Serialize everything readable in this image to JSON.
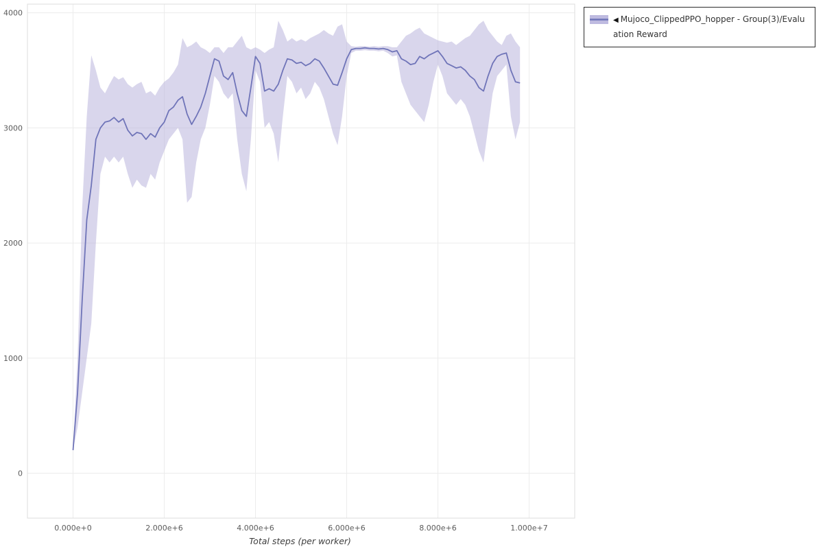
{
  "page": {
    "background": "#ffffff"
  },
  "colors": {
    "line": "#6f74b8",
    "band": "#b3aeda",
    "band_opacity": 0.5,
    "grid": "#ececec",
    "axis_text": "#5a5a5a",
    "plot_border": "#dcdcdc",
    "legend_border": "#2b2b2b",
    "legend_text": "#333333"
  },
  "legend": {
    "collapse_icon": "◀",
    "label": "Mujoco_ClippedPPO_hopper - Group(3)/Evaluation Reward"
  },
  "chart_data": {
    "type": "line",
    "title": "",
    "xlabel": "Total steps (per worker)",
    "ylabel": "",
    "grid": true,
    "legend_position": "top-right-outside",
    "x_start": 0,
    "x_step": 100000,
    "xlim": [
      -1000000,
      11000000
    ],
    "ylim": [
      -390,
      4075
    ],
    "x_ticks": {
      "values": [
        0,
        2000000,
        4000000,
        6000000,
        8000000,
        10000000
      ],
      "labels": [
        "0.000e+0",
        "2.000e+6",
        "4.000e+6",
        "6.000e+6",
        "8.000e+6",
        "1.000e+7"
      ]
    },
    "y_ticks": {
      "values": [
        0,
        1000,
        2000,
        3000,
        4000
      ],
      "labels": [
        "0",
        "1000",
        "2000",
        "3000",
        "4000"
      ]
    },
    "series": [
      {
        "name": "Mujoco_ClippedPPO_hopper - Group(3)/Evaluation Reward",
        "mean": [
          200,
          700,
          1500,
          2200,
          2500,
          2900,
          3000,
          3050,
          3060,
          3090,
          3050,
          3080,
          2980,
          2930,
          2960,
          2950,
          2900,
          2950,
          2920,
          3000,
          3050,
          3150,
          3180,
          3240,
          3270,
          3120,
          3030,
          3100,
          3180,
          3300,
          3450,
          3600,
          3580,
          3450,
          3420,
          3480,
          3300,
          3150,
          3100,
          3350,
          3620,
          3560,
          3320,
          3340,
          3320,
          3380,
          3500,
          3600,
          3590,
          3560,
          3570,
          3540,
          3560,
          3600,
          3580,
          3520,
          3450,
          3380,
          3370,
          3480,
          3600,
          3680,
          3690,
          3690,
          3695,
          3690,
          3690,
          3685,
          3690,
          3680,
          3660,
          3670,
          3600,
          3580,
          3550,
          3560,
          3620,
          3600,
          3630,
          3650,
          3670,
          3620,
          3560,
          3540,
          3520,
          3530,
          3500,
          3450,
          3420,
          3350,
          3320,
          3450,
          3560,
          3620,
          3640,
          3650,
          3500,
          3400,
          3390
        ],
        "lower": [
          200,
          400,
          700,
          1000,
          1300,
          2000,
          2600,
          2750,
          2700,
          2750,
          2700,
          2750,
          2600,
          2480,
          2550,
          2500,
          2480,
          2600,
          2550,
          2700,
          2800,
          2900,
          2950,
          3000,
          2900,
          2350,
          2400,
          2700,
          2900,
          3000,
          3200,
          3450,
          3400,
          3300,
          3250,
          3300,
          2900,
          2600,
          2450,
          2900,
          3500,
          3400,
          3000,
          3050,
          2950,
          2700,
          3100,
          3450,
          3400,
          3300,
          3350,
          3250,
          3300,
          3400,
          3350,
          3250,
          3100,
          2950,
          2850,
          3100,
          3450,
          3650,
          3670,
          3670,
          3675,
          3670,
          3670,
          3665,
          3670,
          3650,
          3620,
          3630,
          3400,
          3300,
          3200,
          3150,
          3100,
          3050,
          3200,
          3400,
          3550,
          3450,
          3300,
          3250,
          3200,
          3250,
          3200,
          3100,
          2950,
          2800,
          2700,
          3000,
          3300,
          3450,
          3500,
          3550,
          3100,
          2900,
          3050
        ],
        "upper": [
          200,
          1000,
          2300,
          3100,
          3630,
          3500,
          3350,
          3300,
          3380,
          3450,
          3420,
          3440,
          3380,
          3350,
          3380,
          3400,
          3300,
          3320,
          3280,
          3350,
          3400,
          3430,
          3480,
          3550,
          3780,
          3700,
          3720,
          3750,
          3700,
          3680,
          3650,
          3700,
          3700,
          3650,
          3700,
          3700,
          3750,
          3800,
          3700,
          3680,
          3700,
          3680,
          3650,
          3680,
          3700,
          3930,
          3850,
          3750,
          3780,
          3750,
          3770,
          3750,
          3780,
          3800,
          3820,
          3850,
          3820,
          3800,
          3880,
          3900,
          3750,
          3710,
          3705,
          3710,
          3710,
          3705,
          3710,
          3705,
          3710,
          3710,
          3700,
          3700,
          3750,
          3800,
          3820,
          3850,
          3870,
          3820,
          3800,
          3780,
          3760,
          3750,
          3740,
          3750,
          3720,
          3750,
          3780,
          3800,
          3850,
          3900,
          3930,
          3850,
          3800,
          3750,
          3720,
          3800,
          3820,
          3750,
          3700
        ]
      }
    ]
  }
}
